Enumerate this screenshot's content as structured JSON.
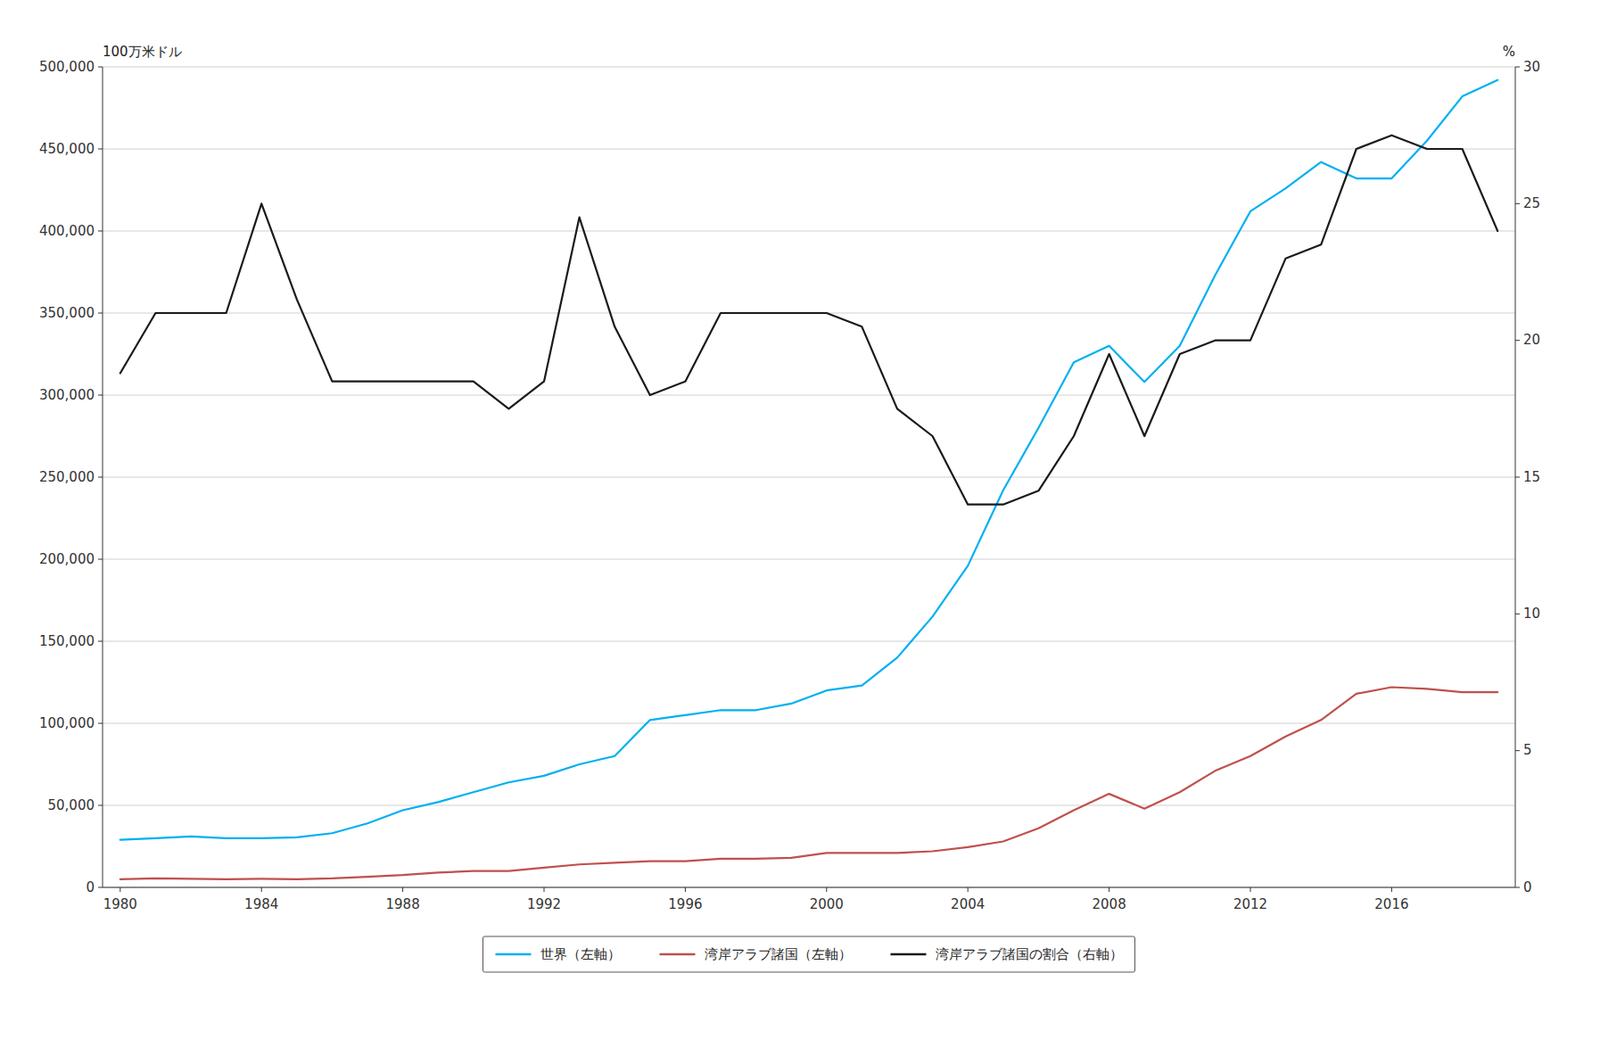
{
  "chart_data": {
    "type": "line",
    "y_label": "100万米ドル",
    "y2_label": "%",
    "x": [
      1980,
      1981,
      1982,
      1983,
      1984,
      1985,
      1986,
      1987,
      1988,
      1989,
      1990,
      1991,
      1992,
      1993,
      1994,
      1995,
      1996,
      1997,
      1998,
      1999,
      2000,
      2001,
      2002,
      2003,
      2004,
      2005,
      2006,
      2007,
      2008,
      2009,
      2010,
      2011,
      2012,
      2013,
      2014,
      2015,
      2016,
      2017,
      2018,
      2019
    ],
    "xlim": [
      1979.5,
      2019.5
    ],
    "xticks": [
      1980,
      1984,
      1988,
      1992,
      1996,
      2000,
      2004,
      2008,
      2012,
      2016
    ],
    "ylim": [
      0,
      500000
    ],
    "yticks": [
      0,
      {
        "value": 50000,
        "label": "50,000"
      },
      {
        "value": 100000,
        "label": "100,000"
      },
      {
        "value": 150000,
        "label": "150,000"
      },
      {
        "value": 200000,
        "label": "200,000"
      },
      {
        "value": 250000,
        "label": "250,000"
      },
      {
        "value": 300000,
        "label": "300,000"
      },
      {
        "value": 350000,
        "label": "350,000"
      },
      {
        "value": 400000,
        "label": "400,000"
      },
      {
        "value": 450000,
        "label": "450,000"
      },
      {
        "value": 500000,
        "label": "500,000"
      }
    ],
    "y2lim": [
      0,
      30
    ],
    "y2ticks": [
      0,
      5,
      10,
      15,
      20,
      25,
      30
    ],
    "grid": true,
    "legend": "bottom",
    "series": [
      {
        "name": "世界（左軸）",
        "color": "#00B0F0",
        "values": [
          29000,
          30000,
          31000,
          30000,
          30000,
          30500,
          33000,
          39000,
          47000,
          52000,
          58000,
          64000,
          68000,
          75000,
          80000,
          102000,
          105000,
          108000,
          108000,
          112000,
          120000,
          123000,
          140000,
          165000,
          196000,
          242000,
          280000,
          320000,
          330000,
          308000,
          330000,
          373000,
          412000,
          426000,
          442000,
          432000,
          432000,
          455000,
          482000,
          492000
        ]
      },
      {
        "name": "湾岸アラブ諸国（左軸）",
        "color": "#C0504D",
        "values": [
          5000,
          5500,
          5200,
          5000,
          5200,
          5000,
          5500,
          6500,
          7500,
          9000,
          10000,
          10000,
          12000,
          14000,
          15000,
          16000,
          16000,
          17500,
          17500,
          18000,
          21000,
          21000,
          21000,
          22000,
          24500,
          28000,
          36000,
          47000,
          57000,
          48000,
          58000,
          71000,
          80000,
          92000,
          102000,
          118000,
          122000,
          121000,
          119000,
          119000
        ]
      },
      {
        "name": "湾岸アラブ諸国の割合（右軸）",
        "color": "#1A1A1A",
        "axis": "y2",
        "values": [
          18.8,
          21.0,
          21.0,
          21.0,
          25.0,
          21.5,
          18.5,
          18.5,
          18.5,
          18.5,
          18.5,
          17.5,
          18.5,
          24.5,
          20.5,
          18.0,
          18.5,
          21.0,
          21.0,
          21.0,
          21.0,
          20.5,
          17.5,
          16.5,
          14.0,
          14.0,
          14.5,
          16.5,
          19.5,
          16.5,
          19.5,
          20.0,
          20.0,
          23.0,
          23.5,
          27.0,
          27.5,
          27.0,
          27.0,
          24.0
        ]
      }
    ]
  }
}
